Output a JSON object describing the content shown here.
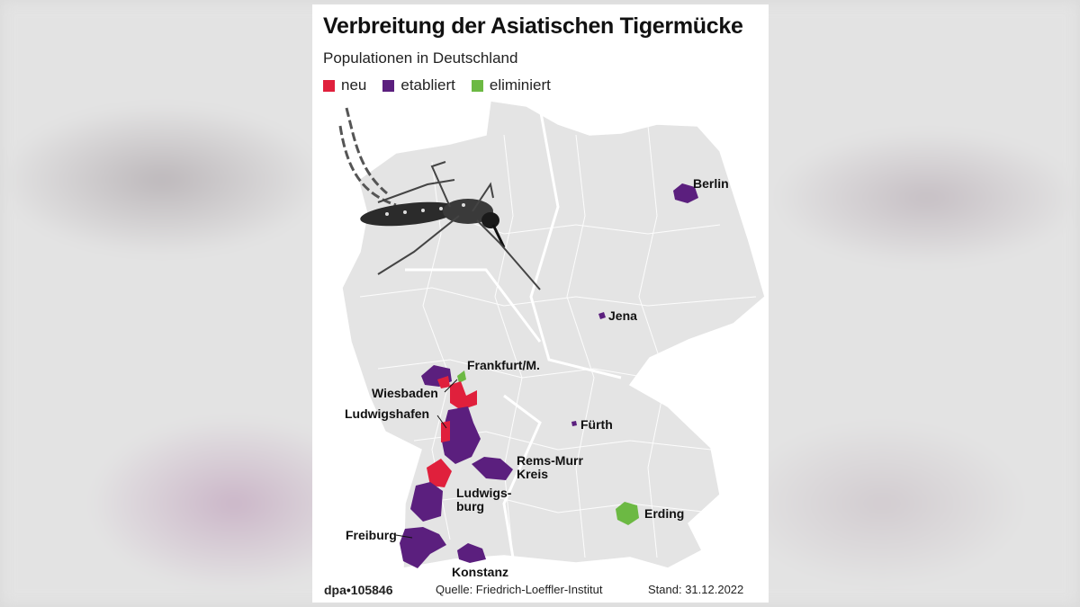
{
  "title": "Verbreitung der Asiatischen Tigermücke",
  "subtitle": "Populationen in Deutschland",
  "legend": [
    {
      "label": "neu",
      "color": "#e0203c"
    },
    {
      "label": "etabliert",
      "color": "#5b1f7e"
    },
    {
      "label": "eliminiert",
      "color": "#6cb943"
    }
  ],
  "places": [
    {
      "name": "Berlin",
      "status": "etabliert"
    },
    {
      "name": "Jena",
      "status": "etabliert"
    },
    {
      "name": "Frankfurt/M.",
      "status": "eliminiert"
    },
    {
      "name": "Wiesbaden",
      "status": "neu"
    },
    {
      "name": "Ludwigshafen",
      "status": "neu"
    },
    {
      "name": "Fürth",
      "status": "etabliert"
    },
    {
      "name": "Rems-Murr Kreis",
      "status": "etabliert"
    },
    {
      "name": "Ludwigs-burg",
      "status": "etabliert"
    },
    {
      "name": "Erding",
      "status": "eliminiert"
    },
    {
      "name": "Freiburg",
      "status": "etabliert"
    },
    {
      "name": "Konstanz",
      "status": "etabliert"
    }
  ],
  "footer": {
    "agency": "dpa•105846",
    "source": "Quelle: Friedrich-Loeffler-Institut",
    "date": "Stand: 31.12.2022"
  }
}
